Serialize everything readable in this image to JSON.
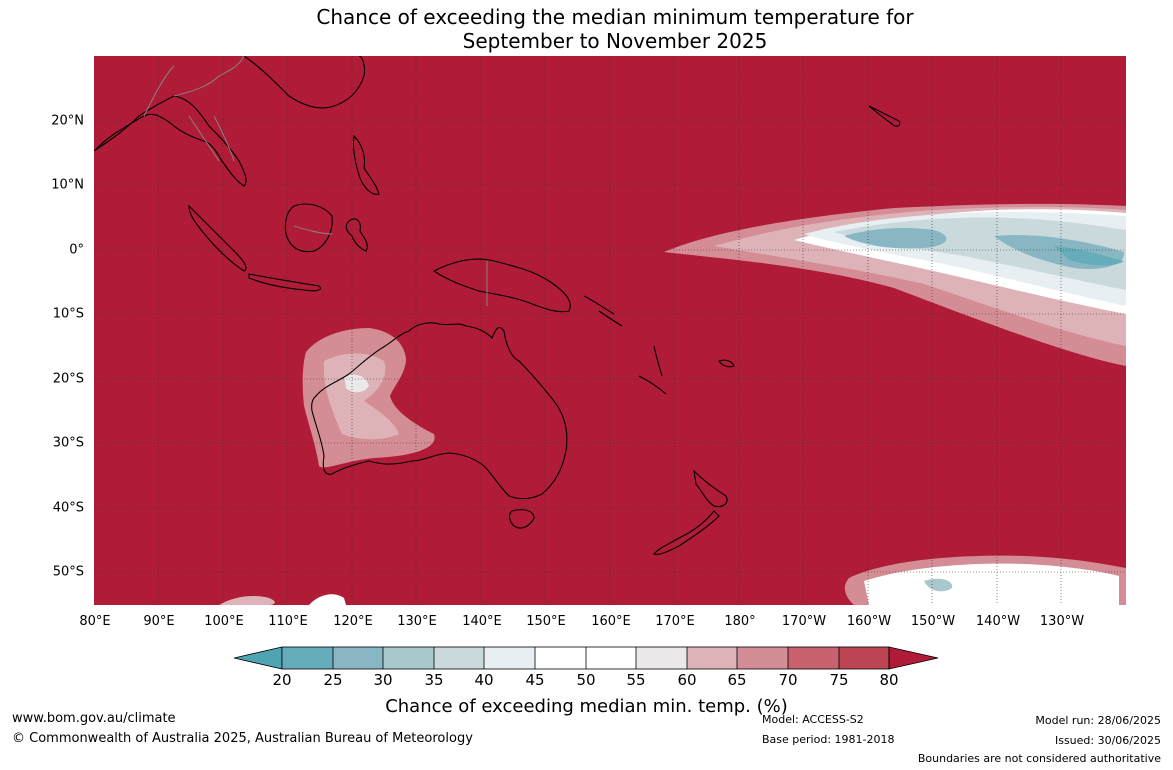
{
  "title": {
    "line1": "Chance of exceeding the median minimum temperature for",
    "line2": "September to November 2025"
  },
  "map": {
    "base_color": "#b01c38",
    "latitude_labels": [
      "20°N",
      "10°N",
      "0°",
      "10°S",
      "20°S",
      "30°S",
      "40°S",
      "50°S"
    ],
    "longitude_labels": [
      "80°E",
      "90°E",
      "100°E",
      "110°E",
      "120°E",
      "130°E",
      "140°E",
      "150°E",
      "160°E",
      "170°E",
      "180°",
      "170°W",
      "160°W",
      "150°W",
      "140°W",
      "130°W"
    ]
  },
  "colorbar": {
    "ticks": [
      "20",
      "25",
      "30",
      "35",
      "40",
      "45",
      "50",
      "55",
      "60",
      "65",
      "70",
      "75",
      "80"
    ],
    "colors": [
      "#66adbb",
      "#88b7c3",
      "#a9c8cc",
      "#cad9dc",
      "#e7eff2",
      "#ffffff",
      "#ffffff",
      "#ebe8e9",
      "#ddb3b8",
      "#d48d95",
      "#c8626f",
      "#bd4553"
    ],
    "low_extend_color": "#4fa4b4",
    "high_extend_color": "#b01c38",
    "label": "Chance of exceeding median min. temp. (%)"
  },
  "footer": {
    "website": "www.bom.gov.au/climate",
    "copyright": "© Commonwealth of Australia 2025, Australian Bureau of Meteorology",
    "model": "Model: ACCESS-S2",
    "base_period": "Base period: 1981-2018",
    "model_run": "Model run: 28/06/2025",
    "issued": "Issued: 30/06/2025",
    "disclaimer": "Boundaries are not considered authoritative"
  }
}
